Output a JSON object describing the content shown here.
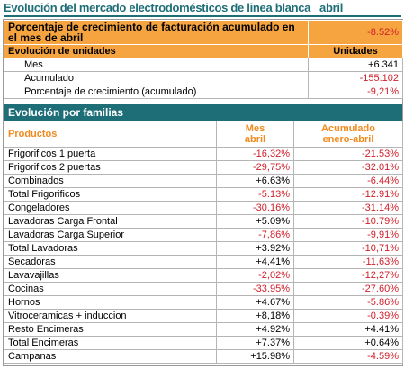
{
  "title": "Evolución del mercado electrodomésticos de linea blanca   abril",
  "summary": {
    "label": "Porcentaje de crecimiento de facturación acumulado en el mes de abril",
    "value": "-8.52%"
  },
  "units": {
    "header": [
      "Evolución de unidades",
      "Unidades"
    ],
    "rows": [
      [
        "Mes",
        "+6.341"
      ],
      [
        "Acumulado",
        "-155.102"
      ],
      [
        "Porcentaje de crecimiento (acumulado)",
        "-9,21%"
      ]
    ]
  },
  "families": {
    "title": "Evolución por familias",
    "columns": [
      "Productos",
      "Mes\nabril",
      "Acumulado\nenero-abril"
    ],
    "rows": [
      [
        "Frigorificos 1 puerta",
        "-16,32%",
        "-21.53%"
      ],
      [
        "Frigorificos 2 puertas",
        "-29,75%",
        "-32.01%"
      ],
      [
        "Combinados",
        "+6.63%",
        "-6.44%"
      ],
      [
        "Total Frigorificos",
        "-5.13%",
        "-12.91%"
      ],
      [
        "Congeladores",
        "-30.16%",
        "-31.14%"
      ],
      [
        "Lavadoras Carga Frontal",
        "+5.09%",
        "-10.79%"
      ],
      [
        "Lavadoras Carga Superior",
        "-7,86%",
        "-9,91%"
      ],
      [
        "Total Lavadoras",
        "+3.92%",
        "-10,71%"
      ],
      [
        "Secadoras",
        "+4,41%",
        "-11,63%"
      ],
      [
        "Lavavajillas",
        "-2,02%",
        "-12,27%"
      ],
      [
        "Cocinas",
        "-33.95%",
        "-27.60%"
      ],
      [
        "Hornos",
        "+4.67%",
        "-5.86%"
      ],
      [
        "Vitroceramicas + induccion",
        "+8,18%",
        "-0.39%"
      ],
      [
        "Resto Encimeras",
        "+4.92%",
        "+4.41%"
      ],
      [
        "Total Encimeras",
        "+7.37%",
        "+0.64%"
      ],
      [
        "Campanas",
        "+15.98%",
        "-4.59%"
      ]
    ]
  }
}
